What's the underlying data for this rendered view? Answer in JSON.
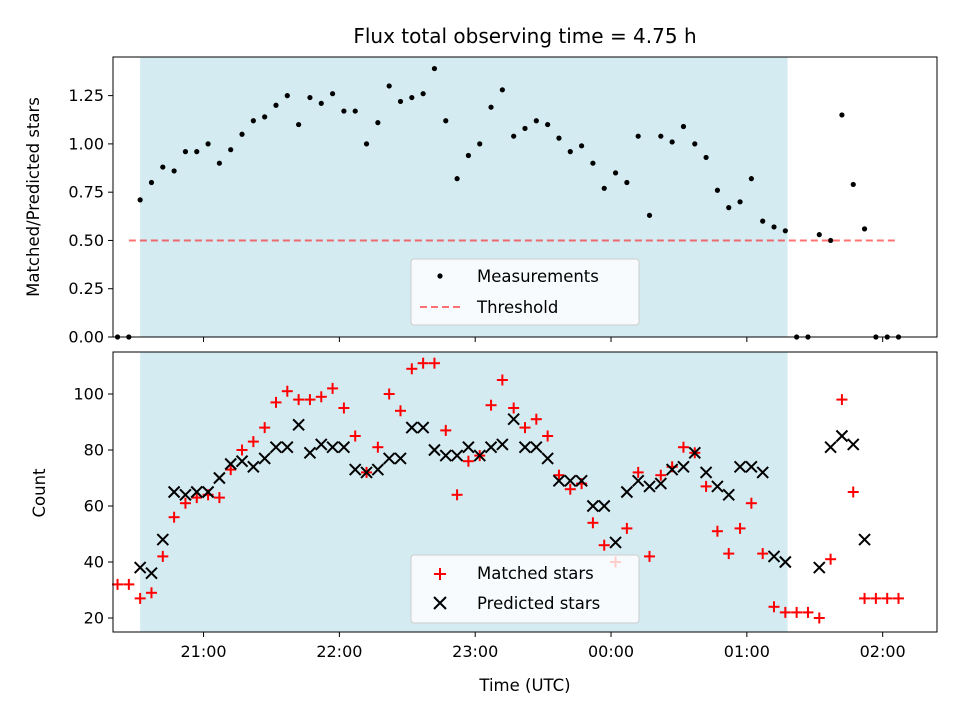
{
  "colors": {
    "shade": "#add8e6",
    "measurement": "#000000",
    "threshold": "#ff0000",
    "matched": "#ff0000",
    "predicted": "#000000",
    "legend_bg": "#ffffff"
  },
  "chart_data": [
    {
      "type": "scatter",
      "title": "Flux total observing time = 4.75 h",
      "xlabel": "",
      "ylabel": "Matched/Predicted stars",
      "xlim": [
        "20:20",
        "02:24"
      ],
      "ylim": [
        0,
        1.45
      ],
      "yticks": [
        "0.00",
        "0.25",
        "0.50",
        "0.75",
        "1.00",
        "1.25"
      ],
      "shaded_span": [
        "20:32",
        "01:18"
      ],
      "grid": false,
      "legend_position": "lower center",
      "series": [
        {
          "name": "Measurements",
          "marker": "dot",
          "x": [
            "20:27",
            "20:32",
            "20:37",
            "20:42",
            "20:47",
            "20:52",
            "20:57",
            "21:02",
            "21:07",
            "21:12",
            "21:17",
            "21:22",
            "21:27",
            "21:32",
            "21:37",
            "21:42",
            "21:47",
            "21:52",
            "21:57",
            "22:02",
            "22:07",
            "22:12",
            "22:17",
            "22:22",
            "22:27",
            "22:32",
            "22:37",
            "22:42",
            "22:47",
            "22:52",
            "22:57",
            "23:02",
            "23:07",
            "23:12",
            "23:17",
            "23:22",
            "23:27",
            "23:32",
            "23:37",
            "23:42",
            "23:47",
            "23:52",
            "23:57",
            "00:02",
            "00:07",
            "00:12",
            "00:17",
            "00:22",
            "00:27",
            "00:32",
            "00:37",
            "00:42",
            "00:47",
            "00:52",
            "00:57",
            "01:02",
            "01:07",
            "01:12",
            "01:17",
            "01:22",
            "01:27",
            "01:32",
            "01:37",
            "01:42",
            "01:47",
            "01:52",
            "01:57",
            "02:02",
            "02:07"
          ],
          "y": [
            0,
            0.71,
            0.8,
            0.88,
            0.86,
            0.96,
            0.96,
            1.0,
            0.9,
            0.97,
            1.05,
            1.12,
            1.14,
            1.2,
            1.25,
            1.1,
            1.24,
            1.21,
            1.26,
            1.17,
            1.17,
            1.0,
            1.11,
            1.3,
            1.22,
            1.24,
            1.26,
            1.39,
            1.12,
            0.82,
            0.94,
            1.0,
            1.19,
            1.28,
            1.04,
            1.08,
            1.12,
            1.1,
            1.03,
            0.96,
            0.99,
            0.9,
            0.77,
            0.85,
            0.8,
            1.04,
            0.63,
            1.04,
            1.01,
            1.09,
            1.0,
            0.93,
            0.76,
            0.67,
            0.7,
            0.82,
            0.6,
            0.57,
            0.55,
            0,
            0,
            0.53,
            0.5,
            1.15,
            0.79,
            0.56,
            0,
            0,
            0
          ],
          "y_note_leading": [
            0,
            0
          ]
        },
        {
          "name": "Threshold",
          "style": "dashed",
          "x": [
            "20:27",
            "02:07"
          ],
          "y": [
            0.5,
            0.5
          ]
        }
      ]
    },
    {
      "type": "scatter",
      "title": "",
      "xlabel": "Time (UTC)",
      "ylabel": "Count",
      "xlim": [
        "20:20",
        "02:24"
      ],
      "ylim": [
        15,
        115
      ],
      "yticks": [
        "20",
        "40",
        "60",
        "80",
        "100"
      ],
      "xticks": [
        "21:00",
        "22:00",
        "23:00",
        "00:00",
        "01:00",
        "02:00"
      ],
      "shaded_span": [
        "20:32",
        "01:18"
      ],
      "grid": false,
      "legend_position": "lower center",
      "series": [
        {
          "name": "Matched stars",
          "marker": "plus",
          "x": [
            "20:22",
            "20:27",
            "20:32",
            "20:37",
            "20:42",
            "20:47",
            "20:52",
            "20:57",
            "21:02",
            "21:07",
            "21:12",
            "21:17",
            "21:22",
            "21:27",
            "21:32",
            "21:37",
            "21:42",
            "21:47",
            "21:52",
            "21:57",
            "22:02",
            "22:07",
            "22:12",
            "22:17",
            "22:22",
            "22:27",
            "22:32",
            "22:37",
            "22:42",
            "22:47",
            "22:52",
            "22:57",
            "23:02",
            "23:07",
            "23:12",
            "23:17",
            "23:22",
            "23:27",
            "23:32",
            "23:37",
            "23:42",
            "23:47",
            "23:52",
            "23:57",
            "00:02",
            "00:07",
            "00:12",
            "00:17",
            "00:22",
            "00:27",
            "00:32",
            "00:37",
            "00:42",
            "00:47",
            "00:52",
            "00:57",
            "01:02",
            "01:07",
            "01:12",
            "01:17",
            "01:22",
            "01:27",
            "01:32",
            "01:37",
            "01:42",
            "01:47",
            "01:52",
            "01:57",
            "02:02",
            "02:07"
          ],
          "y": [
            32,
            32,
            27,
            29,
            42,
            56,
            61,
            63,
            64,
            63,
            73,
            80,
            83,
            88,
            97,
            101,
            98,
            98,
            99,
            102,
            95,
            85,
            72,
            81,
            100,
            94,
            109,
            111,
            111,
            87,
            64,
            76,
            78,
            96,
            105,
            95,
            88,
            91,
            85,
            71,
            66,
            68,
            54,
            46,
            40,
            52,
            72,
            42,
            71,
            74,
            81,
            79,
            67,
            51,
            43,
            52,
            61,
            43,
            24,
            22,
            22,
            22,
            20,
            41,
            98,
            65,
            27,
            27,
            27,
            27
          ]
        },
        {
          "name": "Predicted stars",
          "marker": "x",
          "x": [
            "20:32",
            "20:37",
            "20:42",
            "20:47",
            "20:52",
            "20:57",
            "21:02",
            "21:07",
            "21:12",
            "21:17",
            "21:22",
            "21:27",
            "21:32",
            "21:37",
            "21:42",
            "21:47",
            "21:52",
            "21:57",
            "22:02",
            "22:07",
            "22:12",
            "22:17",
            "22:22",
            "22:27",
            "22:32",
            "22:37",
            "22:42",
            "22:47",
            "22:52",
            "22:57",
            "23:02",
            "23:07",
            "23:12",
            "23:17",
            "23:22",
            "23:27",
            "23:32",
            "23:37",
            "23:42",
            "23:47",
            "23:52",
            "23:57",
            "00:02",
            "00:07",
            "00:12",
            "00:17",
            "00:22",
            "00:27",
            "00:32",
            "00:37",
            "00:42",
            "00:47",
            "00:52",
            "00:57",
            "01:02",
            "01:07",
            "01:12",
            "01:17",
            "01:32",
            "01:37",
            "01:42",
            "01:47",
            "01:52"
          ],
          "y": [
            38,
            36,
            48,
            65,
            64,
            65,
            65,
            70,
            75,
            76,
            74,
            77,
            81,
            81,
            89,
            79,
            82,
            81,
            81,
            73,
            72,
            73,
            77,
            77,
            88,
            88,
            80,
            78,
            78,
            81,
            78,
            81,
            82,
            91,
            81,
            81,
            77,
            69,
            69,
            69,
            60,
            60,
            47,
            65,
            69,
            67,
            68,
            73,
            74,
            79,
            72,
            67,
            64,
            74,
            74,
            72,
            42,
            40,
            38,
            81,
            85,
            82,
            48
          ]
        }
      ]
    }
  ]
}
